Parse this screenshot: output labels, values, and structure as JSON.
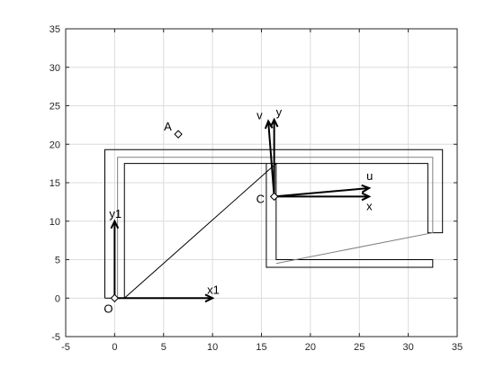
{
  "chart_data": {
    "type": "line",
    "title": "",
    "xlabel": "",
    "ylabel": "",
    "xlim": [
      -5,
      35
    ],
    "ylim": [
      -5,
      35
    ],
    "grid": true,
    "x_ticks": [
      "-5",
      "0",
      "5",
      "10",
      "15",
      "20",
      "25",
      "30",
      "35"
    ],
    "y_ticks": [
      "-5",
      "0",
      "5",
      "10",
      "15",
      "20",
      "25",
      "30",
      "35"
    ],
    "x_tick_values": [
      -5,
      0,
      5,
      10,
      15,
      20,
      25,
      30,
      35
    ],
    "y_tick_values": [
      -5,
      0,
      5,
      10,
      15,
      20,
      25,
      30,
      35
    ],
    "colors": {
      "axes": "#262626",
      "grid": "#dcdcdc",
      "outer": "#000000",
      "inner": "#808080",
      "vectors": "#000000"
    },
    "shapes": [
      {
        "name": "outer-outline",
        "color": "#000000",
        "x": [
          -1,
          -1,
          33.5,
          33.5,
          32,
          32,
          1,
          1,
          16.5,
          16.5,
          32.5,
          32.5,
          15.5,
          15.5,
          1,
          1,
          -1
        ],
        "y": [
          0,
          19.3,
          19.3,
          8.5,
          8.5,
          17.5,
          17.5,
          0,
          17.5,
          5,
          5,
          4,
          4,
          17.5,
          17.5,
          0,
          0
        ]
      },
      {
        "name": "inner-outline",
        "color": "#808080",
        "x": [
          0.3,
          0.3,
          32.5,
          32.5,
          16.5
        ],
        "y": [
          0,
          18.3,
          18.3,
          8.5,
          4.5
        ]
      }
    ],
    "vectors": [
      {
        "label": "x1",
        "from": [
          0,
          0
        ],
        "to": [
          10,
          0
        ]
      },
      {
        "label": "y1",
        "from": [
          0,
          0
        ],
        "to": [
          0,
          10
        ]
      },
      {
        "label": "x",
        "from": [
          16.3,
          13.2
        ],
        "to": [
          26,
          13.2
        ]
      },
      {
        "label": "y",
        "from": [
          16.3,
          13.2
        ],
        "to": [
          16.3,
          23.2
        ]
      },
      {
        "label": "u",
        "from": [
          16.3,
          13.2
        ],
        "to": [
          26,
          14.3
        ]
      },
      {
        "label": "v",
        "from": [
          16.3,
          13.2
        ],
        "to": [
          15.7,
          23
        ]
      }
    ],
    "points": [
      {
        "label": "O",
        "x": 0,
        "y": 0
      },
      {
        "label": "C",
        "x": 16.3,
        "y": 13.2
      },
      {
        "label": "A",
        "x": 6.5,
        "y": 21.3
      }
    ]
  }
}
